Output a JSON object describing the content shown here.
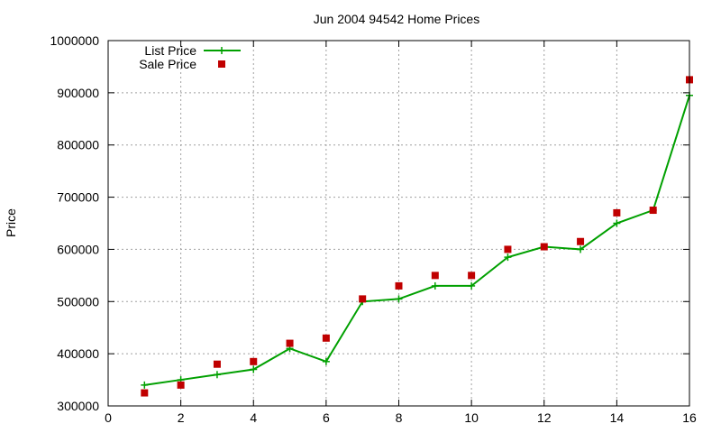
{
  "chart_data": {
    "type": "line",
    "title": "Jun 2004 94542 Home Prices",
    "xlabel": "",
    "ylabel": "Price",
    "xlim": [
      0,
      16
    ],
    "ylim": [
      300000,
      1000000
    ],
    "xticks": [
      0,
      2,
      4,
      6,
      8,
      10,
      12,
      14,
      16
    ],
    "yticks": [
      300000,
      400000,
      500000,
      600000,
      700000,
      800000,
      900000,
      1000000
    ],
    "grid": true,
    "legend_position": "top-left",
    "series": [
      {
        "name": "List Price",
        "style": "line-cross",
        "color": "#00a000",
        "x": [
          1,
          2,
          3,
          4,
          5,
          6,
          7,
          8,
          9,
          10,
          11,
          12,
          13,
          14,
          15,
          16
        ],
        "y": [
          340000,
          350000,
          360000,
          370000,
          410000,
          385000,
          500000,
          505000,
          530000,
          530000,
          585000,
          605000,
          600000,
          650000,
          675000,
          895000
        ]
      },
      {
        "name": "Sale Price",
        "style": "square-points",
        "color": "#c00000",
        "x": [
          1,
          2,
          3,
          4,
          5,
          6,
          7,
          8,
          9,
          10,
          11,
          12,
          13,
          14,
          15,
          16
        ],
        "y": [
          325000,
          340000,
          380000,
          385000,
          420000,
          430000,
          505000,
          530000,
          550000,
          550000,
          600000,
          605000,
          615000,
          670000,
          675000,
          925000
        ]
      }
    ]
  }
}
